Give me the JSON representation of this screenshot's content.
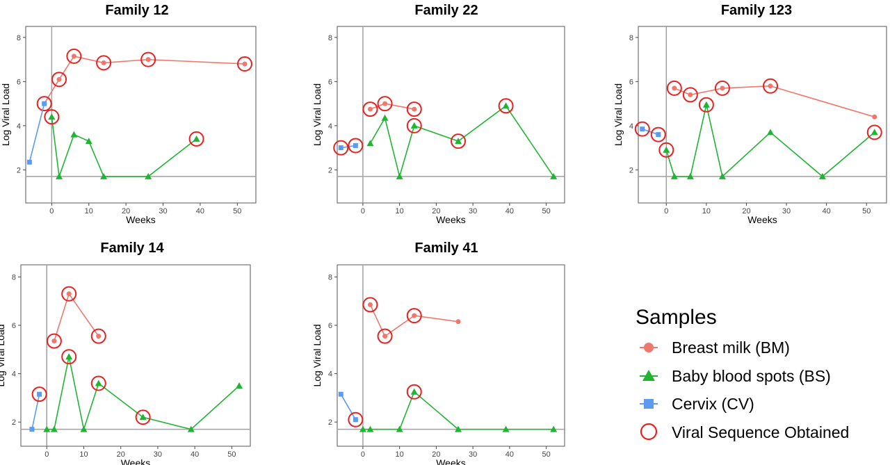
{
  "chart_data": [
    {
      "type": "line",
      "title": "Family 12",
      "xlabel": "Weeks",
      "ylabel": "Log Viral Load",
      "xlim": [
        -7,
        55
      ],
      "ylim": [
        0.5,
        8.5
      ],
      "xticks": [
        0,
        10,
        20,
        30,
        40,
        50
      ],
      "yticks": [
        2,
        4,
        6,
        8
      ],
      "threshold_y": 1.7,
      "series": [
        {
          "key": "bm",
          "points": [
            [
              -2,
              5.0,
              true
            ],
            [
              2,
              6.1,
              true
            ],
            [
              6,
              7.15,
              true
            ],
            [
              14,
              6.85,
              true
            ],
            [
              26,
              7.0,
              true
            ],
            [
              52,
              6.8,
              true
            ]
          ]
        },
        {
          "key": "bs",
          "points": [
            [
              0,
              4.4,
              true
            ],
            [
              2,
              1.7,
              false
            ],
            [
              6,
              3.6,
              false
            ],
            [
              10,
              3.3,
              false
            ],
            [
              14,
              1.7,
              false
            ],
            [
              26,
              1.7,
              false
            ],
            [
              39,
              3.4,
              true
            ]
          ]
        },
        {
          "key": "cv",
          "points": [
            [
              -6,
              2.35,
              false
            ],
            [
              -2,
              5.0,
              false
            ]
          ]
        }
      ]
    },
    {
      "type": "line",
      "title": "Family 22",
      "xlabel": "Weeks",
      "ylabel": "Log Viral Load",
      "xlim": [
        -7,
        55
      ],
      "ylim": [
        0.5,
        8.5
      ],
      "xticks": [
        0,
        10,
        20,
        30,
        40,
        50
      ],
      "yticks": [
        2,
        4,
        6,
        8
      ],
      "threshold_y": 1.7,
      "series": [
        {
          "key": "bm",
          "points": [
            [
              2,
              4.75,
              true
            ],
            [
              6,
              5.0,
              true
            ],
            [
              14,
              4.75,
              true
            ]
          ]
        },
        {
          "key": "bs",
          "points": [
            [
              2,
              3.2,
              false
            ],
            [
              6,
              4.35,
              false
            ],
            [
              10,
              1.7,
              false
            ],
            [
              14,
              4.0,
              true
            ],
            [
              26,
              3.3,
              true
            ],
            [
              39,
              4.9,
              true
            ],
            [
              52,
              1.7,
              false
            ]
          ]
        },
        {
          "key": "cv",
          "points": [
            [
              -6,
              3.0,
              true
            ],
            [
              -2,
              3.1,
              true
            ]
          ]
        }
      ]
    },
    {
      "type": "line",
      "title": "Family 123",
      "xlabel": "Weeks",
      "ylabel": "Log Viral Load",
      "xlim": [
        -7,
        55
      ],
      "ylim": [
        0.5,
        8.5
      ],
      "xticks": [
        0,
        10,
        20,
        30,
        40,
        50
      ],
      "yticks": [
        2,
        4,
        6,
        8
      ],
      "threshold_y": 1.7,
      "series": [
        {
          "key": "bm",
          "points": [
            [
              2,
              5.7,
              true
            ],
            [
              6,
              5.4,
              true
            ],
            [
              14,
              5.7,
              true
            ],
            [
              26,
              5.8,
              true
            ],
            [
              52,
              4.4,
              false
            ]
          ]
        },
        {
          "key": "bs",
          "points": [
            [
              0,
              2.9,
              true
            ],
            [
              2,
              1.7,
              false
            ],
            [
              6,
              1.7,
              false
            ],
            [
              10,
              4.95,
              true
            ],
            [
              14,
              1.7,
              false
            ],
            [
              26,
              3.7,
              false
            ],
            [
              39,
              1.7,
              false
            ],
            [
              52,
              3.7,
              true
            ]
          ]
        },
        {
          "key": "cv",
          "points": [
            [
              -6,
              3.85,
              true
            ],
            [
              -2,
              3.6,
              true
            ]
          ]
        }
      ]
    },
    {
      "type": "line",
      "title": "Family 14",
      "xlabel": "Weeks",
      "ylabel": "Log Viral Load",
      "xlim": [
        -7,
        55
      ],
      "ylim": [
        1.0,
        8.5
      ],
      "xticks": [
        0,
        10,
        20,
        30,
        40,
        50
      ],
      "yticks": [
        2,
        4,
        6,
        8
      ],
      "threshold_y": 1.7,
      "series": [
        {
          "key": "bm",
          "points": [
            [
              2,
              5.35,
              true
            ],
            [
              6,
              7.3,
              true
            ],
            [
              14,
              5.55,
              true
            ]
          ]
        },
        {
          "key": "bs",
          "points": [
            [
              0,
              1.7,
              false
            ],
            [
              2,
              1.7,
              false
            ],
            [
              6,
              4.7,
              true
            ],
            [
              10,
              1.7,
              false
            ],
            [
              14,
              3.6,
              true
            ],
            [
              26,
              2.2,
              true
            ],
            [
              39,
              1.7,
              false
            ],
            [
              52,
              3.5,
              false
            ]
          ]
        },
        {
          "key": "cv",
          "points": [
            [
              -4,
              1.7,
              false
            ],
            [
              -2,
              3.15,
              true
            ]
          ]
        }
      ]
    },
    {
      "type": "line",
      "title": "Family 41",
      "xlabel": "Weeks",
      "ylabel": "Log Viral Load",
      "xlim": [
        -7,
        55
      ],
      "ylim": [
        1.0,
        8.5
      ],
      "xticks": [
        0,
        10,
        20,
        30,
        40,
        50
      ],
      "yticks": [
        2,
        4,
        6,
        8
      ],
      "threshold_y": 1.7,
      "series": [
        {
          "key": "bm",
          "points": [
            [
              2,
              6.85,
              true
            ],
            [
              6,
              5.55,
              true
            ],
            [
              14,
              6.4,
              true
            ],
            [
              26,
              6.15,
              false
            ]
          ]
        },
        {
          "key": "bs",
          "points": [
            [
              0,
              1.7,
              false
            ],
            [
              2,
              1.7,
              false
            ],
            [
              10,
              1.7,
              false
            ],
            [
              14,
              3.25,
              true
            ],
            [
              26,
              1.7,
              false
            ],
            [
              39,
              1.7,
              false
            ],
            [
              52,
              1.7,
              false
            ]
          ]
        },
        {
          "key": "cv",
          "points": [
            [
              -6,
              3.15,
              false
            ],
            [
              -2,
              2.1,
              true
            ]
          ]
        }
      ]
    }
  ],
  "legend": {
    "title": "Samples",
    "items": [
      {
        "key": "bm",
        "label": "Breast milk (BM)",
        "marker": "circle",
        "color": "#f0776c"
      },
      {
        "key": "bs",
        "label": "Baby blood spots (BS)",
        "marker": "triangle",
        "color": "#1fb432"
      },
      {
        "key": "cv",
        "label": "Cervix (CV)",
        "marker": "square",
        "color": "#5b9bf0"
      },
      {
        "key": "seq",
        "label": "Viral Sequence Obtained",
        "marker": "open-circle",
        "color": "#e8211f"
      }
    ]
  },
  "colors": {
    "bm": "#f0776c",
    "bs": "#1fb432",
    "cv": "#5b9bf0",
    "seq": "#e8211f",
    "reference_lines": "#a0a0a0",
    "panel_border": "#555555"
  }
}
